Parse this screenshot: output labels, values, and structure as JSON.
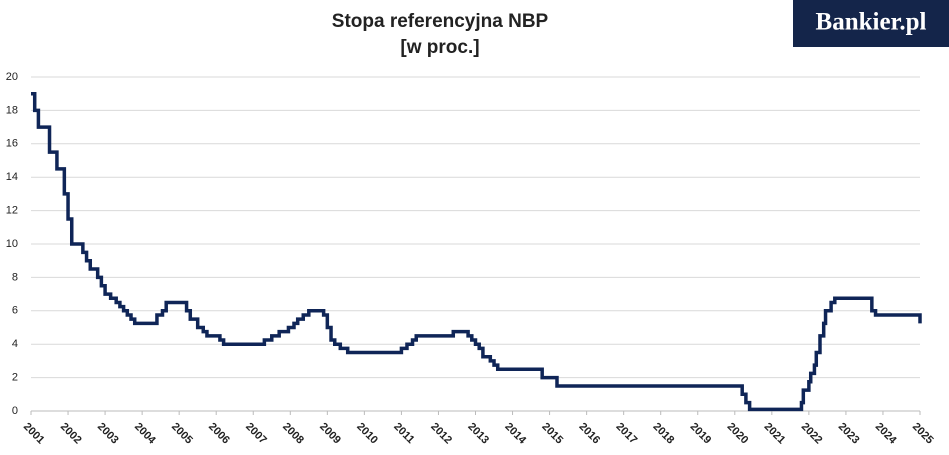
{
  "logo": "Bankier.pl",
  "chart_data": {
    "type": "step-line",
    "title": "Stopa referencyjna NBP",
    "subtitle": "[w proc.]",
    "series": [
      {
        "name": "Stopa referencyjna NBP",
        "color": "#0f2557",
        "x": [
          2001.0,
          2001.1,
          2001.2,
          2001.5,
          2001.7,
          2001.9,
          2002.0,
          2002.1,
          2002.4,
          2002.5,
          2002.6,
          2002.8,
          2002.9,
          2003.0,
          2003.15,
          2003.3,
          2003.4,
          2003.5,
          2003.6,
          2003.7,
          2003.8,
          2004.4,
          2004.55,
          2004.65,
          2005.2,
          2005.3,
          2005.5,
          2005.65,
          2005.75,
          2006.1,
          2006.2,
          2007.3,
          2007.5,
          2007.7,
          2007.95,
          2008.1,
          2008.2,
          2008.35,
          2008.5,
          2008.9,
          2009.0,
          2009.1,
          2009.2,
          2009.35,
          2009.55,
          2011.0,
          2011.15,
          2011.3,
          2011.4,
          2012.4,
          2012.8,
          2012.9,
          2013.0,
          2013.1,
          2013.2,
          2013.4,
          2013.5,
          2013.6,
          2014.8,
          2015.2,
          2020.2,
          2020.3,
          2020.4,
          2021.8,
          2021.85,
          2022.0,
          2022.05,
          2022.15,
          2022.2,
          2022.3,
          2022.4,
          2022.45,
          2022.6,
          2022.7,
          2023.7,
          2023.8,
          2025.0
        ],
        "values": [
          19,
          18,
          17,
          15.5,
          14.5,
          13,
          11.5,
          10,
          9.5,
          9,
          8.5,
          8,
          7.5,
          7,
          6.75,
          6.5,
          6.25,
          6,
          5.75,
          5.5,
          5.25,
          5.75,
          6,
          6.5,
          6,
          5.5,
          5,
          4.75,
          4.5,
          4.25,
          4,
          4.25,
          4.5,
          4.75,
          5,
          5.25,
          5.5,
          5.75,
          6,
          5.75,
          5,
          4.25,
          4,
          3.75,
          3.5,
          3.75,
          4,
          4.25,
          4.5,
          4.75,
          4.5,
          4.25,
          4,
          3.75,
          3.25,
          3,
          2.75,
          2.5,
          2,
          1.5,
          1,
          0.5,
          0.1,
          0.5,
          1.25,
          1.75,
          2.25,
          2.75,
          3.5,
          4.5,
          5.25,
          6,
          6.5,
          6.75,
          6,
          5.75,
          5.25
        ]
      }
    ],
    "xlim": [
      2001,
      2025
    ],
    "xticks": [
      2001,
      2002,
      2003,
      2004,
      2005,
      2006,
      2007,
      2008,
      2009,
      2010,
      2011,
      2012,
      2013,
      2014,
      2015,
      2016,
      2017,
      2018,
      2019,
      2020,
      2021,
      2022,
      2023,
      2024,
      2025
    ],
    "ylim": [
      0,
      20
    ],
    "yticks": [
      0,
      2,
      4,
      6,
      8,
      10,
      12,
      14,
      16,
      18,
      20
    ],
    "grid": true
  }
}
